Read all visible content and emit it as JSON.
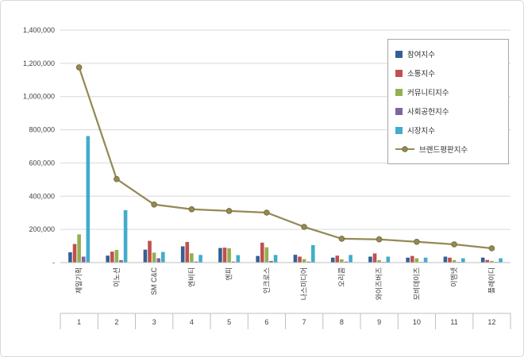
{
  "chart": {
    "background": "#ffffff",
    "border_color": "#d9d9d9",
    "grid_color": "#d9d9d9",
    "axis_color": "#bfbfbf",
    "text_color": "#404040",
    "legend_border_color": "#a6a6a6"
  },
  "chart_data": {
    "type": "bar+line",
    "title": "",
    "xlabel": "",
    "ylabel": "",
    "grid": true,
    "legend_position": "top-right",
    "ylim": [
      0,
      1400000
    ],
    "y_ticks": [
      {
        "label": "1,400,000",
        "value": 1400000
      },
      {
        "label": "1,200,000",
        "value": 1200000
      },
      {
        "label": "1,000,000",
        "value": 1000000
      },
      {
        "label": "800,000",
        "value": 800000
      },
      {
        "label": "600,000",
        "value": 600000
      },
      {
        "label": "400,000",
        "value": 400000
      },
      {
        "label": "200,000",
        "value": 200000
      },
      {
        "label": "-",
        "value": 0
      }
    ],
    "categories": [
      "제일기획",
      "이노션",
      "SM C&C",
      "엔비티",
      "엔피",
      "인크로스",
      "나스미디어",
      "오리콤",
      "와이즈버즈",
      "모비데이즈",
      "이엠넷",
      "플레이디"
    ],
    "category_ranks": [
      "1",
      "2",
      "3",
      "4",
      "5",
      "6",
      "7",
      "8",
      "9",
      "10",
      "11",
      "12"
    ],
    "series": [
      {
        "name": "참여지수",
        "type": "bar",
        "color": "#365F91",
        "values": [
          62000,
          42000,
          78000,
          98000,
          88000,
          40000,
          47000,
          30000,
          36000,
          30000,
          36000,
          30000
        ]
      },
      {
        "name": "소통지수",
        "type": "bar",
        "color": "#C0504D",
        "values": [
          112000,
          66000,
          131000,
          124000,
          90000,
          120000,
          36000,
          42000,
          55000,
          40000,
          30000,
          16000
        ]
      },
      {
        "name": "커뮤니티지수",
        "type": "bar",
        "color": "#92B053",
        "values": [
          170000,
          76000,
          60000,
          56000,
          86000,
          92000,
          21000,
          20000,
          15000,
          26000,
          15000,
          10000
        ]
      },
      {
        "name": "사회공헌지수",
        "type": "bar",
        "color": "#8064A2",
        "values": [
          36000,
          15000,
          26000,
          6000,
          6000,
          10000,
          6000,
          6000,
          4000,
          4000,
          4000,
          4000
        ]
      },
      {
        "name": "시장지수",
        "type": "bar",
        "color": "#43ACCB",
        "values": [
          762000,
          316000,
          64000,
          46000,
          45000,
          46000,
          105000,
          46000,
          36000,
          30000,
          26000,
          26000
        ]
      },
      {
        "name": "브랜드평판지수",
        "type": "line",
        "color": "#948A54",
        "marker_stroke": "#766D3F",
        "values": [
          1176000,
          503000,
          350000,
          321000,
          311000,
          301000,
          215000,
          144000,
          140000,
          125000,
          110000,
          86000
        ]
      }
    ]
  }
}
